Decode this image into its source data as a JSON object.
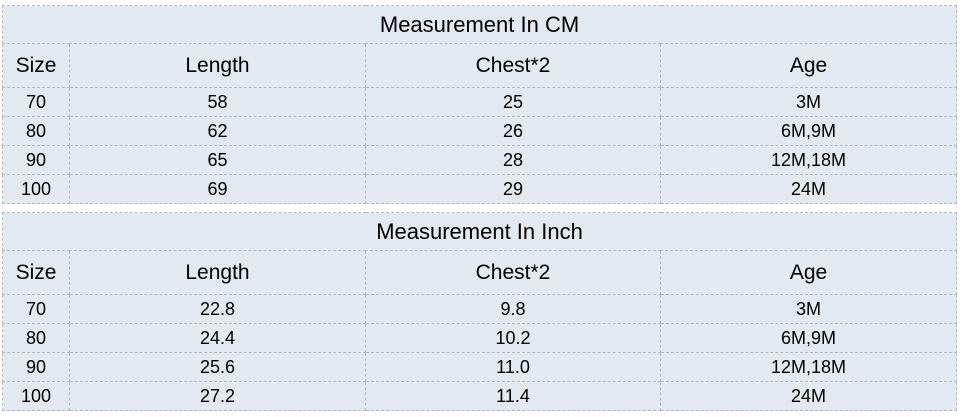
{
  "style": {
    "page_background": "#ffffff",
    "cell_background": "#e3e9f1",
    "border_color": "#b4b9c1",
    "text_color": "#000000"
  },
  "tables": [
    {
      "title": "Measurement In CM",
      "headers": [
        "Size",
        "Length",
        "Chest*2",
        "Age"
      ],
      "rows": [
        [
          "70",
          "58",
          "25",
          "3M"
        ],
        [
          "80",
          "62",
          "26",
          "6M,9M"
        ],
        [
          "90",
          "65",
          "28",
          "12M,18M"
        ],
        [
          "100",
          "69",
          "29",
          "24M"
        ]
      ]
    },
    {
      "title": "Measurement In Inch",
      "headers": [
        "Size",
        "Length",
        "Chest*2",
        "Age"
      ],
      "rows": [
        [
          "70",
          "22.8",
          "9.8",
          "3M"
        ],
        [
          "80",
          "24.4",
          "10.2",
          "6M,9M"
        ],
        [
          "90",
          "25.6",
          "11.0",
          "12M,18M"
        ],
        [
          "100",
          "27.2",
          "11.4",
          "24M"
        ]
      ]
    }
  ]
}
